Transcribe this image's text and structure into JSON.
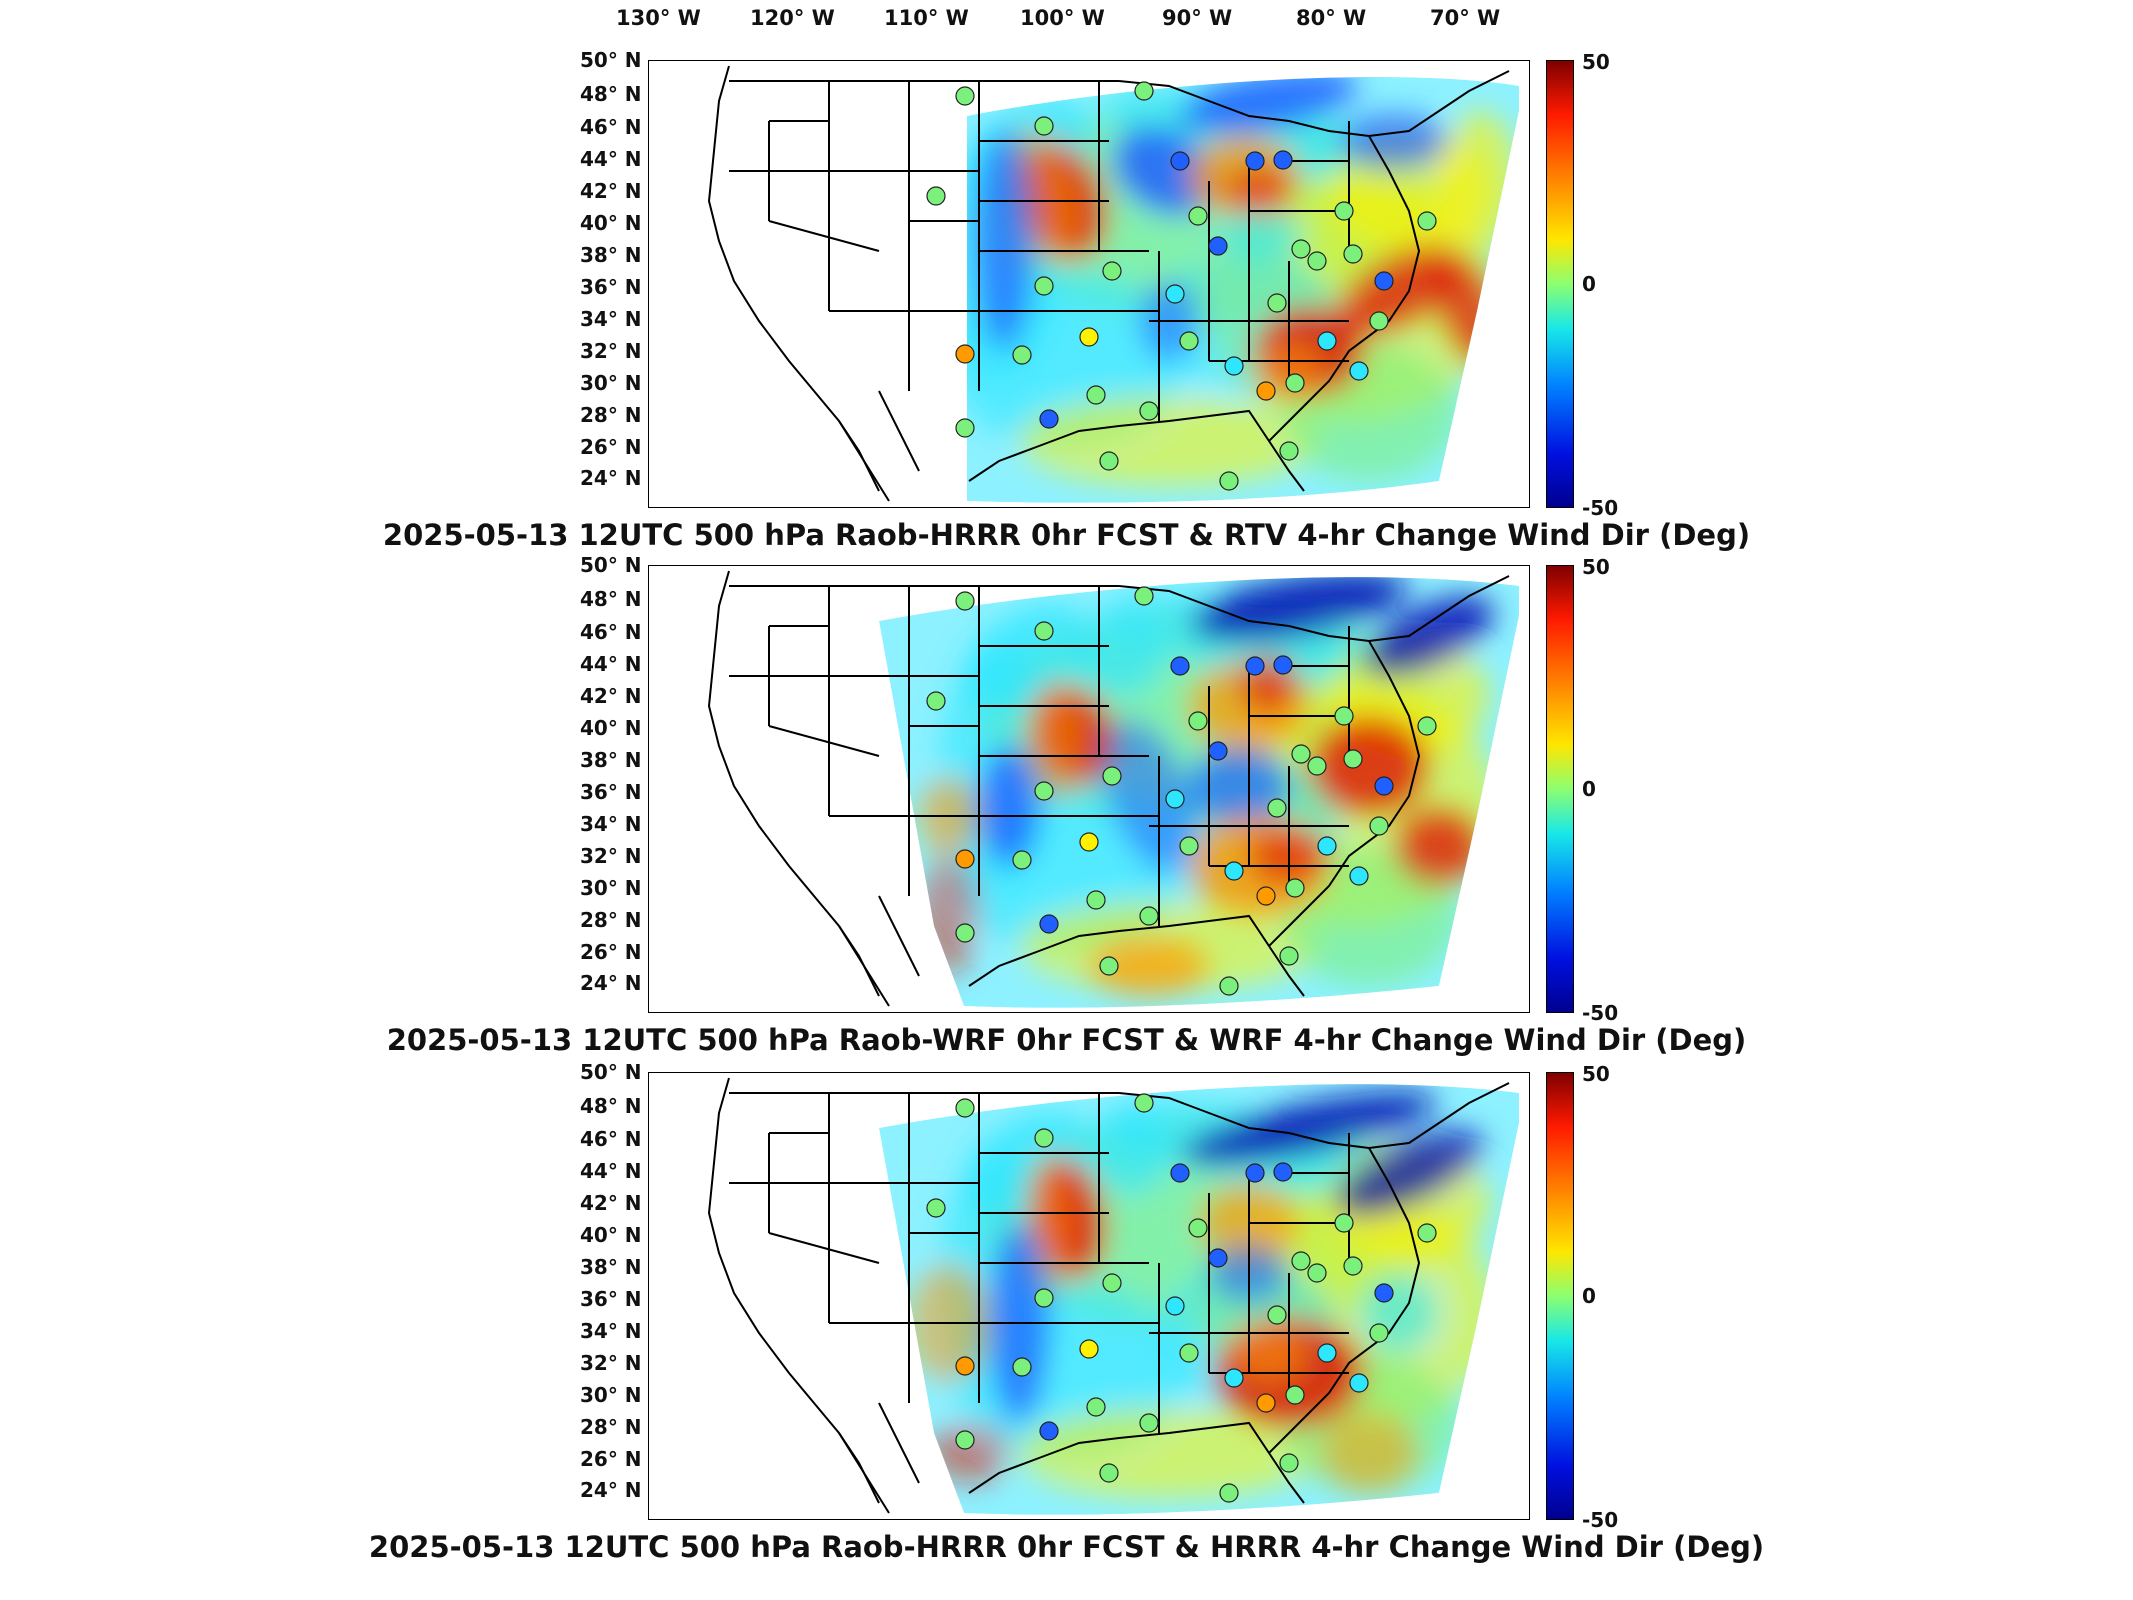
{
  "lon_labels": [
    "130",
    "120",
    "110",
    "100",
    "90",
    "80",
    "70"
  ],
  "lon_suffix": "° W",
  "lat_labels": [
    "50",
    "48",
    "46",
    "44",
    "42",
    "40",
    "38",
    "36",
    "34",
    "32",
    "30",
    "28",
    "26",
    "24"
  ],
  "lat_suffix": "° N",
  "colorbar": {
    "max": "50",
    "mid": "0",
    "min": "-50"
  },
  "panels": [
    {
      "title": "2025-05-13 12UTC 500 hPa Raob-HRRR 0hr FCST & RTV 4-hr Change Wind Dir (Deg)"
    },
    {
      "title": "2025-05-13 12UTC 500 hPa Raob-WRF 0hr FCST & WRF 4-hr Change Wind Dir (Deg)"
    },
    {
      "title": "2025-05-13 12UTC 500 hPa Raob-HRRR 0hr FCST & HRRR 4-hr Change Wind Dir (Deg)"
    }
  ],
  "colors": {
    "red": "#e01000",
    "orange": "#ff9a00",
    "yellow": "#fff200",
    "green": "#7cf07c",
    "cyan": "#2fe6ff",
    "blue": "#2060ff",
    "navy": "#0008b0"
  }
}
